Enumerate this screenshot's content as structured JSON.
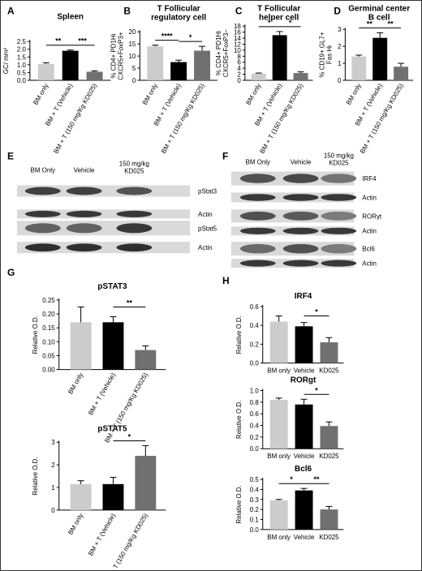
{
  "chart_data": [
    {
      "type": "bar",
      "panel": "A",
      "title": "Spleen",
      "ylabel": "GC/ mm²",
      "categories": [
        "BM only",
        "BM + T (Vehicle)",
        "BM + T (150 mg/Kg KD025)"
      ],
      "values": [
        1.05,
        1.9,
        0.55
      ],
      "errors": [
        0.08,
        0.05,
        0.06
      ],
      "colors": [
        "#cccccc",
        "#000000",
        "#707070"
      ],
      "ylim": [
        0,
        2.5
      ],
      "yticks": [
        "0.0",
        "0.5",
        "1.0",
        "1.5",
        "2.0",
        "2.5"
      ],
      "significance": [
        {
          "from": 0,
          "to": 1,
          "label": "**"
        },
        {
          "from": 1,
          "to": 2,
          "label": "***"
        }
      ]
    },
    {
      "type": "bar",
      "panel": "B",
      "title": "T Follicular regulatory cell",
      "ylabel": "% CD4+ PD1Hi CXCR5+FoxP3+",
      "categories": [
        "BM only",
        "BM + T (Vehicle)",
        "BM + T (150 mg/Kg KD025)"
      ],
      "values": [
        14,
        7.5,
        12.2
      ],
      "errors": [
        0.5,
        0.8,
        1.8
      ],
      "colors": [
        "#cccccc",
        "#000000",
        "#707070"
      ],
      "ylim": [
        0,
        20
      ],
      "yticks": [
        "0",
        "5",
        "10",
        "15",
        "20"
      ],
      "significance": [
        {
          "from": 0,
          "to": 1,
          "label": "****"
        },
        {
          "from": 1,
          "to": 2,
          "label": "*"
        }
      ]
    },
    {
      "type": "bar",
      "panel": "C",
      "title": "T Follicular helper cell",
      "ylabel": "% CD4+ PD1Hi CXCR5+FoxP3−",
      "categories": [
        "BM only",
        "BM + T (Vehicle)",
        "BM + T (150 mg/Kg KD025)"
      ],
      "values": [
        2.2,
        15,
        2.4
      ],
      "errors": [
        0.2,
        1.2,
        0.4
      ],
      "colors": [
        "#cccccc",
        "#000000",
        "#707070"
      ],
      "ylim": [
        0,
        18
      ],
      "yticks": [
        "0",
        "2",
        "4",
        "6",
        "8",
        "10",
        "12",
        "14",
        "16",
        "18"
      ],
      "significance": [
        {
          "from": 0,
          "to": 1,
          "label": "*"
        },
        {
          "from": 1,
          "to": 2,
          "label": "*"
        }
      ]
    },
    {
      "type": "bar",
      "panel": "D",
      "title": "Germinal center B cell",
      "ylabel": "% CD19+ GL7+ Fas Hi",
      "categories": [
        "BM only",
        "BM + T (Vehicle)",
        "BM + T (150 mg/Kg KD025)"
      ],
      "values": [
        1.4,
        2.5,
        0.8
      ],
      "errors": [
        0.08,
        0.3,
        0.2
      ],
      "colors": [
        "#cccccc",
        "#000000",
        "#707070"
      ],
      "ylim": [
        0,
        3
      ],
      "yticks": [
        "0",
        "1",
        "2",
        "3"
      ],
      "significance": [
        {
          "from": 0,
          "to": 1,
          "label": "**"
        },
        {
          "from": 1,
          "to": 2,
          "label": "**"
        }
      ]
    },
    {
      "type": "bar",
      "panel": "G",
      "title": "pSTAT3",
      "ylabel": "Relative O.D.",
      "categories": [
        "BM only",
        "BM + T (Vehicle)",
        "BM + T (150 mg/Kg KD025)"
      ],
      "values": [
        0.17,
        0.17,
        0.07
      ],
      "errors": [
        0.055,
        0.02,
        0.015
      ],
      "colors": [
        "#cccccc",
        "#000000",
        "#707070"
      ],
      "ylim": [
        0,
        0.25
      ],
      "yticks": [
        "0.00",
        "0.05",
        "0.10",
        "0.15",
        "0.20",
        "0.25"
      ],
      "significance": [
        {
          "from": 1,
          "to": 2,
          "label": "**"
        }
      ]
    },
    {
      "type": "bar",
      "panel": "G",
      "title": "pSTAT5",
      "ylabel": "Relative O.D.",
      "categories": [
        "BM only",
        "BM + T (Vehicle)",
        "BM + T (150 mg/Kg KD025)"
      ],
      "values": [
        1.15,
        1.15,
        2.4
      ],
      "errors": [
        0.15,
        0.3,
        0.45
      ],
      "colors": [
        "#cccccc",
        "#000000",
        "#707070"
      ],
      "ylim": [
        0,
        3
      ],
      "yticks": [
        "0",
        "1",
        "2",
        "3"
      ],
      "significance": [
        {
          "from": 1,
          "to": 2,
          "label": "*"
        }
      ]
    },
    {
      "type": "bar",
      "panel": "H",
      "title": "IRF4",
      "ylabel": "Relative O.D.",
      "categories": [
        "BM only",
        "Vehicle",
        "KD025"
      ],
      "values": [
        0.44,
        0.39,
        0.22
      ],
      "errors": [
        0.06,
        0.04,
        0.05
      ],
      "colors": [
        "#cccccc",
        "#000000",
        "#707070"
      ],
      "ylim": [
        0,
        0.6
      ],
      "yticks": [
        "0.0",
        "0.2",
        "0.4",
        "0.6"
      ],
      "significance": [
        {
          "from": 1,
          "to": 2,
          "label": "*"
        }
      ]
    },
    {
      "type": "bar",
      "panel": "H",
      "title": "RORgt",
      "ylabel": "Relative O.D.",
      "categories": [
        "BM only",
        "Vehicle",
        "KD025"
      ],
      "values": [
        0.84,
        0.76,
        0.39
      ],
      "errors": [
        0.03,
        0.09,
        0.07
      ],
      "colors": [
        "#cccccc",
        "#000000",
        "#707070"
      ],
      "ylim": [
        0,
        1.0
      ],
      "yticks": [
        "0.0",
        "0.2",
        "0.4",
        "0.6",
        "0.8",
        "1.0"
      ],
      "significance": [
        {
          "from": 1,
          "to": 2,
          "label": "*"
        }
      ]
    },
    {
      "type": "bar",
      "panel": "H",
      "title": "Bcl6",
      "ylabel": "Relative O.D.",
      "categories": [
        "BM only",
        "Vehicle",
        "KD025"
      ],
      "values": [
        0.29,
        0.39,
        0.2
      ],
      "errors": [
        0.01,
        0.02,
        0.03
      ],
      "colors": [
        "#cccccc",
        "#000000",
        "#707070"
      ],
      "ylim": [
        0,
        0.5
      ],
      "yticks": [
        "0.0",
        "0.1",
        "0.2",
        "0.3",
        "0.4",
        "0.5"
      ],
      "significance": [
        {
          "from": 0,
          "to": 1,
          "label": "*"
        },
        {
          "from": 1,
          "to": 2,
          "label": "**"
        }
      ]
    }
  ],
  "panel_letters": [
    "A",
    "B",
    "C",
    "D",
    "E",
    "F",
    "G",
    "H"
  ],
  "blot_E": {
    "columns": [
      "BM Only",
      "Vehicle",
      "150 mg/kg KD025"
    ],
    "rows": [
      {
        "label": "pStat3",
        "intensity": [
          0.8,
          0.8,
          0.7
        ]
      },
      {
        "label": "Actin",
        "intensity": [
          0.85,
          0.85,
          0.85
        ]
      },
      {
        "label": "pStat5",
        "intensity": [
          0.6,
          0.6,
          0.85
        ]
      },
      {
        "label": "Actin",
        "intensity": [
          0.9,
          0.9,
          0.9
        ]
      }
    ]
  },
  "blot_F": {
    "columns": [
      "BM Only",
      "Vehicle",
      "150 mg/kg KD025"
    ],
    "rows": [
      {
        "label": "IRF4",
        "intensity": [
          0.7,
          0.75,
          0.5
        ]
      },
      {
        "label": "Actin",
        "intensity": [
          0.85,
          0.85,
          0.85
        ]
      },
      {
        "label": "RORγt",
        "intensity": [
          0.7,
          0.65,
          0.45
        ]
      },
      {
        "label": "Actin",
        "intensity": [
          0.85,
          0.85,
          0.85
        ]
      },
      {
        "label": "Bcl6",
        "intensity": [
          0.55,
          0.7,
          0.45
        ]
      },
      {
        "label": "Actin",
        "intensity": [
          0.85,
          0.85,
          0.85
        ]
      }
    ]
  }
}
